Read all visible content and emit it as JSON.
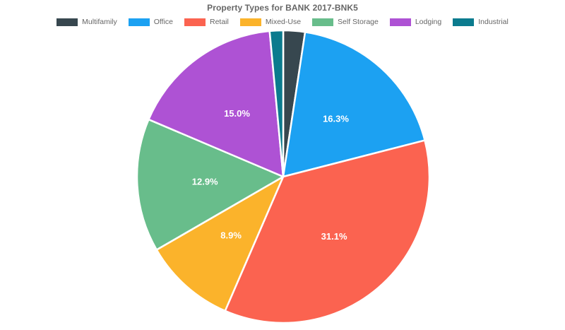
{
  "chart_data": {
    "type": "pie",
    "title": "Property Types for BANK 2017-BNK5",
    "legend_position": "top",
    "background": "#ffffff",
    "title_color": "#666666",
    "legend_text_color": "#666666",
    "slice_label_color": "#ffffff",
    "border_color": "#ffffff",
    "center": [
      401,
      250
    ],
    "radius": 207,
    "label_radius": 111,
    "start_angle_deg": 0,
    "direction": "clockwise",
    "slices": [
      {
        "label": "Multifamily",
        "value": 2.1,
        "display_label": "",
        "color": "#37474F"
      },
      {
        "label": "Office",
        "value": 16.3,
        "display_label": "16.3%",
        "color": "#1CA1F2"
      },
      {
        "label": "Retail",
        "value": 31.1,
        "display_label": "31.1%",
        "color": "#FB6350"
      },
      {
        "label": "Mixed-Use",
        "value": 8.9,
        "display_label": "8.9%",
        "color": "#FBB32B"
      },
      {
        "label": "Self Storage",
        "value": 12.9,
        "display_label": "12.9%",
        "color": "#68BD8B"
      },
      {
        "label": "Lodging",
        "value": 15.0,
        "display_label": "15.0%",
        "color": "#AE52D4"
      },
      {
        "label": "Industrial",
        "value": 1.3,
        "display_label": "",
        "color": "#0B7B8E"
      }
    ]
  }
}
